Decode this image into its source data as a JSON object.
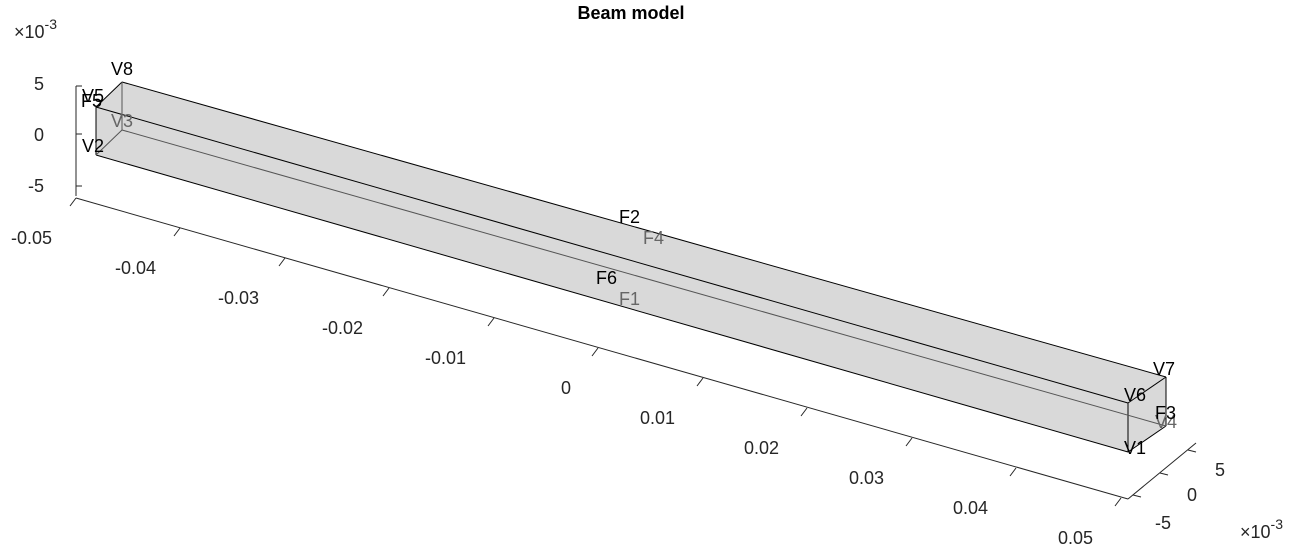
{
  "title": "Beam model",
  "colors": {
    "face": "#d9d9d9",
    "edge": "#000000",
    "axis": "#262626",
    "label_front": "#000000",
    "label_hidden": "#666666"
  },
  "exponent_labels": {
    "z": "×10^{-3}",
    "y": "×10^{-3}"
  },
  "z_ticks": [
    "5",
    "0",
    "-5"
  ],
  "x_ticks": [
    "-0.05",
    "-0.04",
    "-0.03",
    "-0.02",
    "-0.01",
    "0",
    "0.01",
    "0.02",
    "0.03",
    "0.04",
    "0.05"
  ],
  "y_ticks": [
    "5",
    "0",
    "-5"
  ],
  "vertex_labels": [
    {
      "id": "V8",
      "text": "V8",
      "hidden": false
    },
    {
      "id": "V5",
      "text": "V5",
      "hidden": false
    },
    {
      "id": "V3",
      "text": "V3",
      "hidden": true
    },
    {
      "id": "V2",
      "text": "V2",
      "hidden": false
    },
    {
      "id": "V7",
      "text": "V7",
      "hidden": false
    },
    {
      "id": "V6",
      "text": "V6",
      "hidden": false
    },
    {
      "id": "V4",
      "text": "V4",
      "hidden": true
    },
    {
      "id": "V1",
      "text": "V1",
      "hidden": false
    }
  ],
  "face_labels": [
    {
      "id": "F5",
      "text": "F5",
      "hidden": false
    },
    {
      "id": "F2",
      "text": "F2",
      "hidden": false
    },
    {
      "id": "F4",
      "text": "F4",
      "hidden": true
    },
    {
      "id": "F6",
      "text": "F6",
      "hidden": false
    },
    {
      "id": "F1",
      "text": "F1",
      "hidden": true
    },
    {
      "id": "F3",
      "text": "F3",
      "hidden": false
    }
  ]
}
